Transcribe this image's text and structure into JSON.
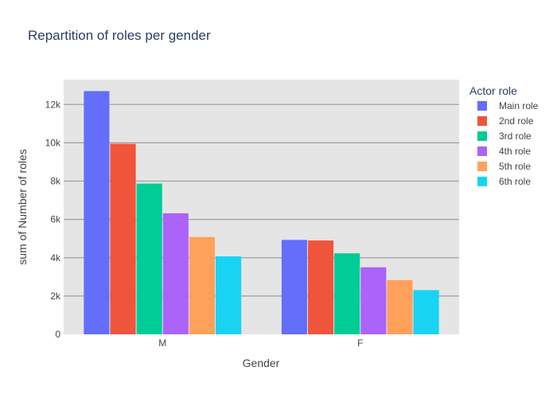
{
  "chart_data": {
    "type": "bar",
    "title": "Repartition of roles per gender",
    "xlabel": "Gender",
    "ylabel": "sum of Number of roles",
    "categories": [
      "M",
      "F"
    ],
    "ylim": [
      0,
      13300
    ],
    "yticks": [
      0,
      2000,
      4000,
      6000,
      8000,
      10000,
      12000
    ],
    "ytick_labels": [
      "0",
      "2k",
      "4k",
      "6k",
      "8k",
      "10k",
      "12k"
    ],
    "legend_title": "Actor role",
    "legend_position": "top-right",
    "grid": true,
    "series": [
      {
        "name": "Main role",
        "color": "#636efa",
        "values": [
          12700,
          4930
        ]
      },
      {
        "name": "2nd role",
        "color": "#ef553b",
        "values": [
          9950,
          4900
        ]
      },
      {
        "name": "3rd role",
        "color": "#00cc96",
        "values": [
          7870,
          4230
        ]
      },
      {
        "name": "4th role",
        "color": "#ab63fa",
        "values": [
          6320,
          3500
        ]
      },
      {
        "name": "5th role",
        "color": "#ffa15a",
        "values": [
          5080,
          2830
        ]
      },
      {
        "name": "6th role",
        "color": "#19d3f3",
        "values": [
          4070,
          2310
        ]
      }
    ]
  }
}
